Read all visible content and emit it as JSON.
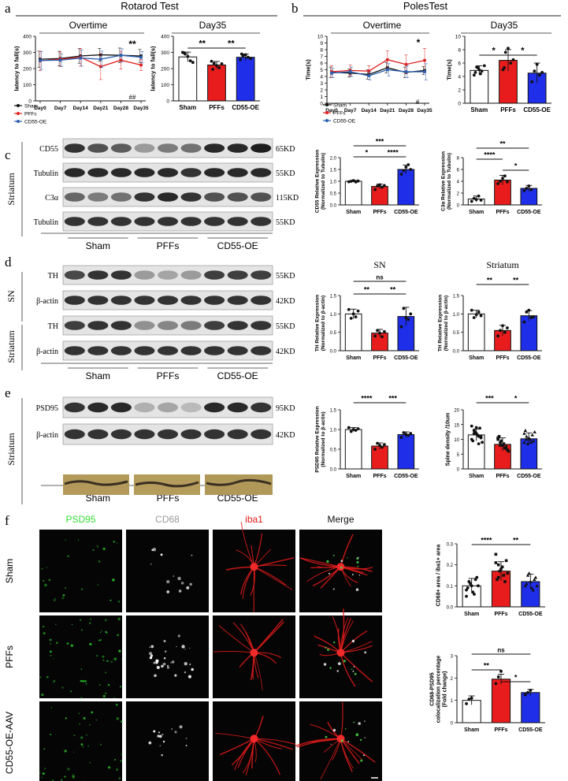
{
  "panel_letters": {
    "a": "a",
    "b": "b",
    "c": "c",
    "d": "d",
    "e": "e",
    "f": "f"
  },
  "panel_a": {
    "title": "Rotarod Test",
    "overtime_title": "Overtime",
    "day35_title": "Day35",
    "ylabel": "latency to fall(s)",
    "sig_overtime_top": "**",
    "sig_overtime_bottom": "##",
    "sig_bar_1": "**",
    "sig_bar_2": "**"
  },
  "panel_b": {
    "title": "PolesTest",
    "overtime_title": "Overtime",
    "day35_title": "Day35",
    "ylabel": "Time(s)",
    "sig_overtime_top": "*",
    "sig_overtime_bottom": "#",
    "sig_bar_1": "*",
    "sig_bar_2": "*"
  },
  "legend": {
    "sham": "Sham",
    "pffs": "PFFs",
    "cd55": "CD55-OE"
  },
  "blots": {
    "c": {
      "side_label": "Striatum",
      "rows": [
        {
          "name": "CD55",
          "size": "65KD"
        },
        {
          "name": "Tubulin",
          "size": "55KD"
        },
        {
          "name": "C3α",
          "size": "115KD"
        },
        {
          "name": "Tubulin",
          "size": "55KD"
        }
      ],
      "groups": [
        "Sham",
        "PFFs",
        "CD55-OE"
      ]
    },
    "d": {
      "side_label_1": "SN",
      "side_label_2": "Striatum",
      "rows": [
        {
          "name": "TH",
          "size": "55KD"
        },
        {
          "name": "β-actin",
          "size": "42KD"
        },
        {
          "name": "TH",
          "size": "55KD"
        },
        {
          "name": "β-actin",
          "size": "42KD"
        }
      ],
      "groups": [
        "Sham",
        "PFFs",
        "CD55-OE"
      ]
    },
    "e": {
      "side_label": "Striatum",
      "rows": [
        {
          "name": "PSD95",
          "size": "95KD"
        },
        {
          "name": "β-actin",
          "size": "42KD"
        }
      ],
      "groups": [
        "Sham",
        "PFFs",
        "CD55-OE"
      ]
    }
  },
  "panel_f": {
    "columns": [
      "PSD95",
      "CD68",
      "iba1",
      "Merge"
    ],
    "rows": [
      "Sham",
      "PFFs",
      "CD55-OE-AAV"
    ],
    "column_colors": [
      "#33dd33",
      "#999999",
      "#e01818",
      "#111111"
    ]
  },
  "bar_charts": {
    "c1": {
      "ylabel": "CD55 Relative Expression\n(Normalized to Tubulin)",
      "sigs": [
        "***",
        "*",
        "****"
      ]
    },
    "c2": {
      "ylabel": "C3α Relative Expression\n(Normalized to Tubulin)",
      "sigs": [
        "**",
        "****",
        "*"
      ]
    },
    "d1": {
      "title": "SN",
      "ylabel": "TH Relative Expression\n(Normalized to β-actin)",
      "sigs": [
        "ns",
        "**",
        "**"
      ]
    },
    "d2": {
      "title": "Striatum",
      "ylabel": "TH Relative Expression\n(Normalized to β-actin)",
      "sigs": [
        "**",
        "**"
      ]
    },
    "e1": {
      "ylabel": "PSD95 Relative Expression\n(Normalized to β-actin)",
      "sigs": [
        "****",
        "***"
      ]
    },
    "e2": {
      "ylabel": "Spine density /10um",
      "sigs": [
        "***",
        "*"
      ]
    },
    "f1": {
      "ylabel": "CD68+ area / iba1+ area",
      "sigs": [
        "****",
        "**"
      ]
    },
    "f2": {
      "ylabel": "CD68-PSD95\ncolocalization percentage\n(Fold change)",
      "sigs": [
        "ns",
        "**",
        "*"
      ]
    }
  },
  "chart_data": [
    {
      "id": "a_overtime",
      "type": "line",
      "x": [
        "Day0",
        "Day7",
        "Day14",
        "Day21",
        "Day28",
        "Day35"
      ],
      "ylim": [
        0,
        400
      ],
      "yticks": [
        0,
        100,
        200,
        300,
        400
      ],
      "series": [
        {
          "name": "Sham",
          "values": [
            258,
            262,
            278,
            285,
            282,
            278
          ],
          "err": [
            50,
            45,
            45,
            40,
            45,
            40
          ]
        },
        {
          "name": "PFFs",
          "values": [
            248,
            258,
            270,
            212,
            252,
            222
          ],
          "err": [
            60,
            45,
            55,
            80,
            55,
            35
          ]
        },
        {
          "name": "CD55-OE",
          "values": [
            250,
            252,
            265,
            258,
            282,
            270
          ],
          "err": [
            55,
            40,
            50,
            50,
            40,
            35
          ]
        }
      ]
    },
    {
      "id": "a_day35",
      "type": "bar",
      "categories": [
        "Sham",
        "PFFs",
        "CD55-OE"
      ],
      "values": [
        272,
        222,
        270
      ],
      "err": [
        30,
        22,
        20
      ],
      "ylim": [
        0,
        400
      ],
      "yticks": [
        0,
        100,
        200,
        300,
        400
      ],
      "points": [
        [
          300,
          290,
          275,
          248,
          238,
          298
        ],
        [
          245,
          232,
          218,
          205,
          230,
          195
        ],
        [
          255,
          280,
          285,
          270,
          262,
          290
        ]
      ]
    },
    {
      "id": "b_overtime",
      "type": "line",
      "x": [
        "Day0",
        "Day7",
        "Day14",
        "Day21",
        "Day28",
        "Day35"
      ],
      "ylim": [
        0,
        10
      ],
      "yticks": [
        0,
        1,
        2,
        3,
        4,
        5,
        6,
        7,
        8,
        9,
        10
      ],
      "series": [
        {
          "name": "Sham",
          "values": [
            4.6,
            4.5,
            4.3,
            5.3,
            4.6,
            4.9
          ],
          "err": [
            0.8,
            0.6,
            0.7,
            0.8,
            0.8,
            0.6
          ]
        },
        {
          "name": "PFFs",
          "values": [
            4.7,
            4.9,
            4.8,
            6.5,
            5.8,
            6.4
          ],
          "err": [
            0.9,
            0.8,
            0.8,
            1.3,
            1.4,
            1.8
          ]
        },
        {
          "name": "CD55-OE",
          "values": [
            4.5,
            4.7,
            4.1,
            5.0,
            4.7,
            4.7
          ],
          "err": [
            0.7,
            0.7,
            0.6,
            0.9,
            0.9,
            1.2
          ]
        }
      ]
    },
    {
      "id": "b_day35",
      "type": "bar",
      "categories": [
        "Sham",
        "PFFs",
        "CD55-OE"
      ],
      "values": [
        4.9,
        6.4,
        4.5
      ],
      "err": [
        0.7,
        1.6,
        1.5
      ],
      "ylim": [
        0,
        10
      ],
      "yticks": [
        0,
        2,
        4,
        6,
        8,
        10
      ],
      "points": [
        [
          4.2,
          5.4,
          5.0,
          4.8,
          5.6,
          4.6,
          5.3,
          4.4
        ],
        [
          5.0,
          7.6,
          8.2,
          6.0,
          6.5,
          5.3
        ],
        [
          3.2,
          4.8,
          5.8,
          4.2,
          4.6
        ]
      ]
    },
    {
      "id": "c_cd55",
      "type": "bar",
      "categories": [
        "Sham",
        "PFFs",
        "CD55-OE"
      ],
      "values": [
        1.0,
        0.78,
        1.5
      ],
      "err": [
        0.04,
        0.1,
        0.18
      ],
      "ylim": [
        0,
        2.0
      ],
      "yticks": [
        0,
        0.5,
        1.0,
        1.5,
        2.0
      ],
      "ytick_labels": [
        "0.0",
        "0.5",
        "1.0",
        "1.5",
        "2.0"
      ],
      "points": [
        [
          0.98,
          1.0,
          1.03,
          0.97,
          1.01
        ],
        [
          0.65,
          0.8,
          0.85,
          0.75,
          0.82
        ],
        [
          1.3,
          1.45,
          1.6,
          1.7,
          1.5
        ]
      ]
    },
    {
      "id": "c_c3a",
      "type": "bar",
      "categories": [
        "Sham",
        "PFFs",
        "CD55-OE"
      ],
      "values": [
        1.0,
        4.2,
        2.8
      ],
      "err": [
        0.5,
        0.8,
        0.5
      ],
      "ylim": [
        0,
        8
      ],
      "yticks": [
        0,
        2,
        4,
        6,
        8
      ],
      "points": [
        [
          0.6,
          1.1,
          0.9,
          1.5,
          0.8
        ],
        [
          3.6,
          4.0,
          4.5,
          4.9,
          3.9
        ],
        [
          2.4,
          2.8,
          3.2,
          2.6
        ]
      ]
    },
    {
      "id": "d_sn",
      "type": "bar",
      "categories": [
        "Sham",
        "PFFs",
        "CD55-OE"
      ],
      "values": [
        1.0,
        0.48,
        0.93
      ],
      "err": [
        0.13,
        0.1,
        0.25
      ],
      "ylim": [
        0,
        1.5
      ],
      "yticks": [
        0,
        0.5,
        1.0,
        1.5
      ],
      "ytick_labels": [
        "0.0",
        "0.5",
        "1.0",
        "1.5"
      ],
      "points": [
        [
          1.12,
          0.88,
          1.0,
          0.92,
          1.08
        ],
        [
          0.4,
          0.55,
          0.48,
          0.38,
          0.52
        ],
        [
          0.65,
          1.15,
          0.9,
          0.85,
          1.0
        ]
      ]
    },
    {
      "id": "d_striatum",
      "type": "bar",
      "categories": [
        "Sham",
        "PFFs",
        "CD55-OE"
      ],
      "values": [
        1.0,
        0.55,
        0.95
      ],
      "err": [
        0.1,
        0.14,
        0.14
      ],
      "ylim": [
        0,
        1.5
      ],
      "yticks": [
        0,
        0.5,
        1.0,
        1.5
      ],
      "ytick_labels": [
        "0.0",
        "0.5",
        "1.0",
        "1.5"
      ],
      "points": [
        [
          1.1,
          0.9,
          0.98,
          1.05,
          0.95
        ],
        [
          0.4,
          0.55,
          0.68,
          0.5,
          0.62
        ],
        [
          0.78,
          1.05,
          1.1,
          0.9,
          0.92
        ]
      ]
    },
    {
      "id": "e_psd95",
      "type": "bar",
      "categories": [
        "Sham",
        "PFFs",
        "CD55-OE"
      ],
      "values": [
        1.0,
        0.58,
        0.87
      ],
      "err": [
        0.05,
        0.08,
        0.07
      ],
      "ylim": [
        0,
        1.5
      ],
      "yticks": [
        0,
        0.5,
        1.0,
        1.5
      ],
      "ytick_labels": [
        "0.0",
        "0.5",
        "1.0",
        "1.5"
      ],
      "points": [
        [
          1.05,
          0.95,
          1.0,
          0.98,
          1.02
        ],
        [
          0.5,
          0.65,
          0.6,
          0.55,
          0.62
        ],
        [
          0.8,
          0.92,
          0.88,
          0.85,
          0.9
        ]
      ]
    },
    {
      "id": "e_spine",
      "type": "bar",
      "categories": [
        "Sham",
        "PFFs",
        "CD55-OE"
      ],
      "values": [
        11.5,
        8.3,
        10.2
      ],
      "err": [
        2.0,
        2.2,
        2.0
      ],
      "ylim": [
        0,
        20
      ],
      "yticks": [
        0,
        5,
        10,
        15,
        20
      ],
      "points": [
        [
          14.5,
          13,
          12,
          11,
          10.5,
          9.5,
          12.5,
          11.5,
          13.8,
          9,
          10,
          12,
          14,
          8.5,
          11
        ],
        [
          10,
          9,
          8,
          7,
          6.5,
          11,
          9.5,
          8.5,
          7.5,
          6,
          10.5,
          8
        ],
        [
          12,
          11,
          10.5,
          9,
          9.5,
          13,
          8.5,
          10,
          11.5,
          12.5,
          9,
          10
        ]
      ]
    },
    {
      "id": "f_cd68",
      "type": "bar",
      "categories": [
        "Sham",
        "PFFs",
        "CD55-OE"
      ],
      "values": [
        0.1,
        0.17,
        0.12
      ],
      "err": [
        0.035,
        0.045,
        0.035
      ],
      "ylim": [
        0,
        0.3
      ],
      "yticks": [
        0,
        0.1,
        0.2,
        0.3
      ],
      "ytick_labels": [
        "0.0",
        "0.1",
        "0.2",
        "0.3"
      ],
      "points": [
        [
          0.08,
          0.12,
          0.1,
          0.06,
          0.14,
          0.09,
          0.11,
          0.07,
          0.13,
          0.1,
          0.05,
          0.12
        ],
        [
          0.25,
          0.2,
          0.18,
          0.15,
          0.22,
          0.13,
          0.17,
          0.19,
          0.12,
          0.16,
          0.21,
          0.14
        ],
        [
          0.1,
          0.15,
          0.12,
          0.08,
          0.14,
          0.11,
          0.16,
          0.09,
          0.13,
          0.1
        ]
      ]
    },
    {
      "id": "f_coloc",
      "type": "bar",
      "categories": [
        "Sham",
        "PFFs",
        "CD55-OE"
      ],
      "values": [
        1.0,
        1.95,
        1.35
      ],
      "err": [
        0.2,
        0.22,
        0.14
      ],
      "ylim": [
        0,
        3
      ],
      "yticks": [
        0,
        1,
        2,
        3
      ],
      "points": [
        [
          0.85,
          1.05,
          1.1
        ],
        [
          1.75,
          2.05,
          2.3
        ],
        [
          1.25,
          1.35,
          1.45
        ]
      ]
    }
  ]
}
